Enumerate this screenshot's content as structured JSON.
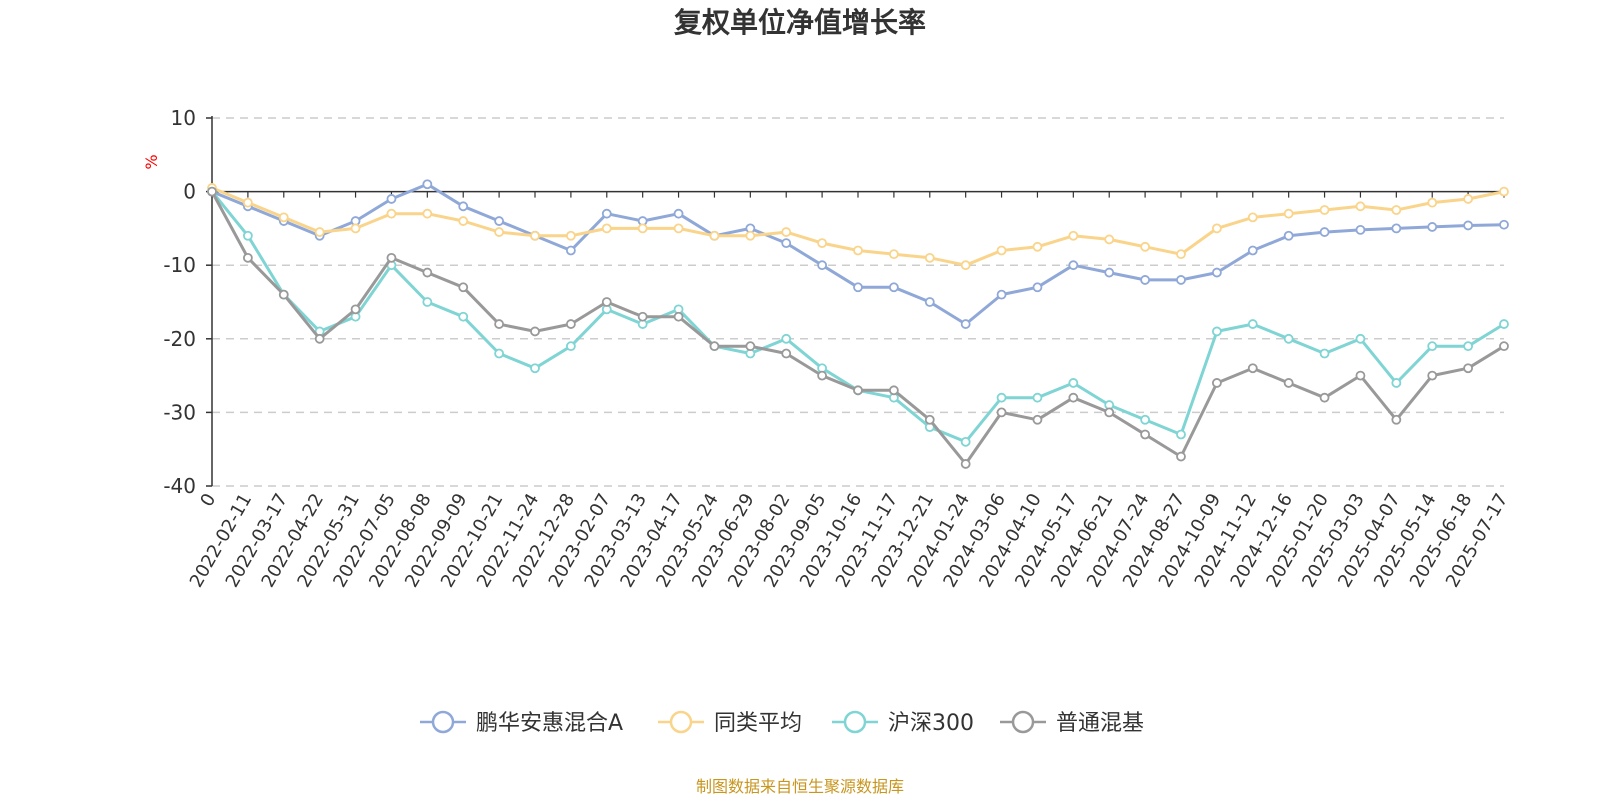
{
  "chart_data": {
    "type": "line",
    "title": "复权单位净值增长率",
    "ylabel": "%",
    "ylim": [
      -40,
      10
    ],
    "yticks": [
      "10",
      "0",
      "-10",
      "-20",
      "-30",
      "-40"
    ],
    "grid": true,
    "legend_position": "bottom",
    "x": [
      "0",
      "2022-02-11",
      "2022-03-17",
      "2022-04-22",
      "2022-05-31",
      "2022-07-05",
      "2022-08-08",
      "2022-09-09",
      "2022-10-21",
      "2022-11-24",
      "2022-12-28",
      "2023-02-07",
      "2023-03-13",
      "2023-04-17",
      "2023-05-24",
      "2023-06-29",
      "2023-08-02",
      "2023-09-05",
      "2023-10-16",
      "2023-11-17",
      "2023-12-21",
      "2024-01-24",
      "2024-03-06",
      "2024-04-10",
      "2024-05-17",
      "2024-06-21",
      "2024-07-24",
      "2024-08-27",
      "2024-10-09",
      "2024-11-12",
      "2024-12-16",
      "2025-01-20",
      "2025-03-03",
      "2025-04-07",
      "2025-05-14",
      "2025-06-18",
      "2025-07-17"
    ],
    "series": [
      {
        "name": "鹏华安惠混合A",
        "color": "#8fa8d8",
        "values": [
          0,
          -2,
          -4,
          -6,
          -4,
          -1,
          1,
          -2,
          -4,
          -6,
          -8,
          -3,
          -4,
          -3,
          -6,
          -5,
          -7,
          -10,
          -13,
          -13,
          -15,
          -18,
          -14,
          -13,
          -10,
          -11,
          -12,
          -12,
          -11,
          -8,
          -6,
          -5.5,
          -5.2,
          -5,
          -4.8,
          -4.6,
          -4.5
        ]
      },
      {
        "name": "同类平均",
        "color": "#f9d48a",
        "values": [
          0.5,
          -1.5,
          -3.5,
          -5.5,
          -5,
          -3,
          -3,
          -4,
          -5.5,
          -6,
          -6,
          -5,
          -5,
          -5,
          -6,
          -6,
          -5.5,
          -7,
          -8,
          -8.5,
          -9,
          -10,
          -8,
          -7.5,
          -6,
          -6.5,
          -7.5,
          -8.5,
          -5,
          -3.5,
          -3,
          -2.5,
          -2,
          -2.5,
          -1.5,
          -1,
          0
        ]
      },
      {
        "name": "沪深300",
        "color": "#7fd4d4",
        "values": [
          0,
          -6,
          -14,
          -19,
          -17,
          -10,
          -15,
          -17,
          -22,
          -24,
          -21,
          -16,
          -18,
          -16,
          -21,
          -22,
          -20,
          -24,
          -27,
          -28,
          -32,
          -34,
          -28,
          -28,
          -26,
          -29,
          -31,
          -33,
          -19,
          -18,
          -20,
          -22,
          -20,
          -26,
          -21,
          -21,
          -18
        ]
      },
      {
        "name": "普通混基",
        "color": "#999999",
        "values": [
          0,
          -9,
          -14,
          -20,
          -16,
          -9,
          -11,
          -13,
          -18,
          -19,
          -18,
          -15,
          -17,
          -17,
          -21,
          -21,
          -22,
          -25,
          -27,
          -27,
          -31,
          -37,
          -30,
          -31,
          -28,
          -30,
          -33,
          -36,
          -26,
          -24,
          -26,
          -28,
          -25,
          -31,
          -25,
          -24,
          -21
        ]
      }
    ]
  },
  "source_note": "制图数据来自恒生聚源数据库"
}
